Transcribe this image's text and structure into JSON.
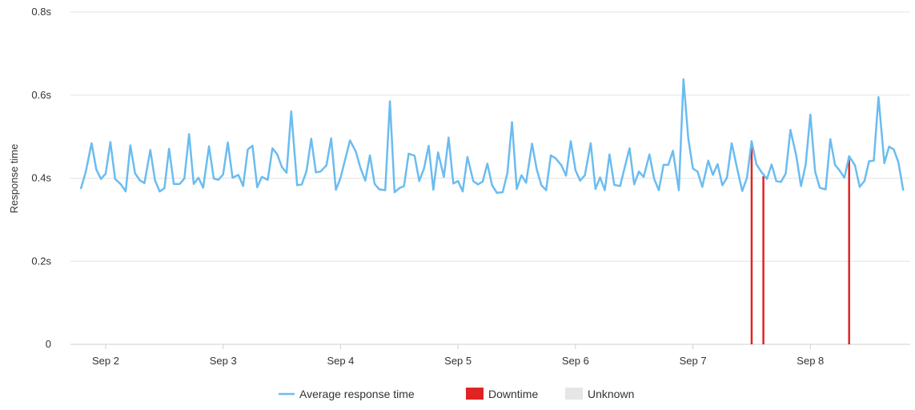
{
  "chart_data": {
    "type": "line",
    "ylabel": "Response time",
    "xlabel": "",
    "ylim": [
      0,
      0.8
    ],
    "y_ticks": [
      {
        "value": 0,
        "label": "0"
      },
      {
        "value": 0.2,
        "label": "0.2s"
      },
      {
        "value": 0.4,
        "label": "0.4s"
      },
      {
        "value": 0.6,
        "label": "0.6s"
      },
      {
        "value": 0.8,
        "label": "0.8s"
      }
    ],
    "xlim": [
      1.7,
      8.85
    ],
    "x_ticks": [
      {
        "value": 2,
        "label": "Sep 2"
      },
      {
        "value": 3,
        "label": "Sep 3"
      },
      {
        "value": 4,
        "label": "Sep 4"
      },
      {
        "value": 5,
        "label": "Sep 5"
      },
      {
        "value": 6,
        "label": "Sep 6"
      },
      {
        "value": 7,
        "label": "Sep 7"
      },
      {
        "value": 8,
        "label": "Sep 8"
      }
    ],
    "grid": true,
    "legend_position": "bottom",
    "legend": [
      {
        "label": "Average response time",
        "color": "#6bbcf0",
        "kind": "line"
      },
      {
        "label": "Downtime",
        "color": "#e02424",
        "kind": "box"
      },
      {
        "label": "Unknown",
        "color": "#e6e6e6",
        "kind": "box"
      }
    ],
    "series": [
      {
        "name": "Average response time",
        "color": "#6bbcf0",
        "x": [
          1.79,
          1.83,
          1.88,
          1.92,
          1.96,
          2.0,
          2.04,
          2.08,
          2.13,
          2.17,
          2.21,
          2.25,
          2.29,
          2.33,
          2.38,
          2.42,
          2.46,
          2.5,
          2.54,
          2.58,
          2.63,
          2.67,
          2.71,
          2.75,
          2.79,
          2.83,
          2.88,
          2.92,
          2.96,
          3.0,
          3.04,
          3.08,
          3.13,
          3.17,
          3.21,
          3.25,
          3.29,
          3.33,
          3.38,
          3.42,
          3.46,
          3.5,
          3.54,
          3.58,
          3.63,
          3.67,
          3.71,
          3.75,
          3.79,
          3.83,
          3.88,
          3.92,
          3.96,
          4.0,
          4.04,
          4.08,
          4.13,
          4.17,
          4.21,
          4.25,
          4.29,
          4.33,
          4.38,
          4.42,
          4.46,
          4.5,
          4.54,
          4.58,
          4.63,
          4.67,
          4.71,
          4.75,
          4.79,
          4.83,
          4.88,
          4.92,
          4.96,
          5.0,
          5.04,
          5.08,
          5.13,
          5.17,
          5.21,
          5.25,
          5.29,
          5.33,
          5.38,
          5.42,
          5.46,
          5.5,
          5.54,
          5.58,
          5.63,
          5.67,
          5.71,
          5.75,
          5.79,
          5.83,
          5.88,
          5.92,
          5.96,
          6.0,
          6.04,
          6.08,
          6.13,
          6.17,
          6.21,
          6.25,
          6.29,
          6.33,
          6.38,
          6.42,
          6.46,
          6.5,
          6.54,
          6.58,
          6.63,
          6.67,
          6.71,
          6.75,
          6.79,
          6.83,
          6.88,
          6.92,
          6.96,
          7.0,
          7.04,
          7.08,
          7.13,
          7.17,
          7.21,
          7.25,
          7.29,
          7.33,
          7.38,
          7.42,
          7.46,
          7.5,
          7.54,
          7.58,
          7.63,
          7.67,
          7.71,
          7.75,
          7.79,
          7.83,
          7.88,
          7.92,
          7.96,
          8.0,
          8.04,
          8.08,
          8.13,
          8.17,
          8.21,
          8.25,
          8.29,
          8.33,
          8.38,
          8.42,
          8.46,
          8.5,
          8.54,
          8.58,
          8.63,
          8.67,
          8.71,
          8.75,
          8.79
        ],
        "values": [
          0.376,
          0.415,
          0.484,
          0.421,
          0.398,
          0.411,
          0.487,
          0.398,
          0.385,
          0.368,
          0.479,
          0.412,
          0.395,
          0.388,
          0.468,
          0.395,
          0.368,
          0.376,
          0.471,
          0.386,
          0.386,
          0.399,
          0.506,
          0.386,
          0.401,
          0.377,
          0.477,
          0.399,
          0.396,
          0.409,
          0.486,
          0.401,
          0.408,
          0.381,
          0.469,
          0.478,
          0.378,
          0.403,
          0.396,
          0.472,
          0.458,
          0.427,
          0.413,
          0.561,
          0.383,
          0.385,
          0.417,
          0.495,
          0.414,
          0.416,
          0.431,
          0.496,
          0.372,
          0.401,
          0.446,
          0.491,
          0.464,
          0.424,
          0.394,
          0.455,
          0.386,
          0.373,
          0.371,
          0.585,
          0.366,
          0.376,
          0.381,
          0.459,
          0.454,
          0.393,
          0.423,
          0.478,
          0.372,
          0.462,
          0.403,
          0.498,
          0.387,
          0.393,
          0.368,
          0.451,
          0.393,
          0.385,
          0.392,
          0.435,
          0.383,
          0.365,
          0.366,
          0.412,
          0.535,
          0.374,
          0.407,
          0.389,
          0.483,
          0.421,
          0.383,
          0.371,
          0.455,
          0.448,
          0.431,
          0.406,
          0.489,
          0.419,
          0.394,
          0.407,
          0.484,
          0.374,
          0.402,
          0.371,
          0.457,
          0.384,
          0.381,
          0.427,
          0.472,
          0.385,
          0.416,
          0.403,
          0.457,
          0.398,
          0.371,
          0.432,
          0.432,
          0.466,
          0.371,
          0.638,
          0.497,
          0.423,
          0.416,
          0.379,
          0.442,
          0.408,
          0.434,
          0.383,
          0.401,
          0.484,
          0.419,
          0.369,
          0.401,
          0.489,
          0.434,
          0.416,
          0.398,
          0.433,
          0.393,
          0.391,
          0.411,
          0.516,
          0.454,
          0.381,
          0.432,
          0.553,
          0.416,
          0.377,
          0.373,
          0.494,
          0.432,
          0.418,
          0.401,
          0.453,
          0.431,
          0.379,
          0.393,
          0.441,
          0.442,
          0.595,
          0.436,
          0.476,
          0.469,
          0.438,
          0.372
        ]
      }
    ],
    "downtime": [
      {
        "x": 7.5,
        "value": 0.482
      },
      {
        "x": 7.6,
        "value": 0.405
      },
      {
        "x": 8.33,
        "value": 0.445
      }
    ]
  }
}
